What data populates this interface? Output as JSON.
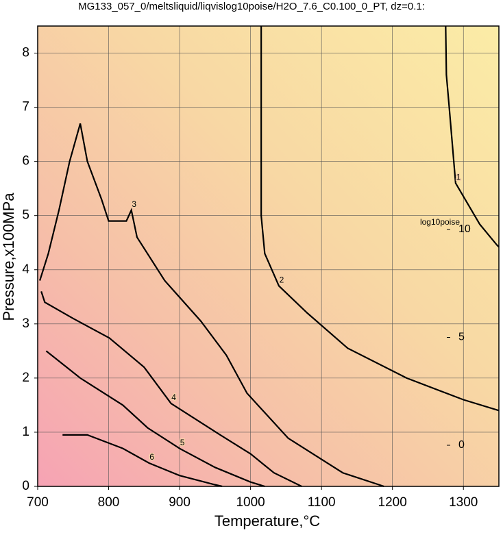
{
  "chart_data": {
    "type": "contour",
    "title": "MG133_057_0/meltsliquid/liqvislog10poise/H2O_7.6_C0.100_0_PT, dz=0.1:",
    "xlabel": "Temperature,°C",
    "ylabel": "Pressure,x100MPa",
    "xlim": [
      700,
      1350
    ],
    "ylim": [
      0,
      8.5
    ],
    "xticks": [
      700,
      800,
      900,
      1000,
      1100,
      1200,
      1300
    ],
    "yticks": [
      0,
      1,
      2,
      3,
      4,
      5,
      6,
      7,
      8
    ],
    "grid": true,
    "color": "#000000",
    "colorbar": {
      "label": "log10poise",
      "lim": [
        0,
        10
      ],
      "ticks": [
        0,
        5,
        10
      ]
    },
    "contours": [
      {
        "level": 1,
        "x": [
          1275,
          1276,
          1280,
          1289,
          1323,
          1347,
          1350
        ],
        "y": [
          8.5,
          7.6,
          7.0,
          5.6,
          4.84,
          4.46,
          4.42
        ]
      },
      {
        "level": 2,
        "x": [
          1015,
          1015,
          1015,
          1015,
          1020,
          1040,
          1080,
          1137,
          1220,
          1300,
          1350
        ],
        "y": [
          8.5,
          7.0,
          6.0,
          5.0,
          4.3,
          3.7,
          3.2,
          2.55,
          2.0,
          1.6,
          1.4
        ]
      },
      {
        "level": 3,
        "x": [
          703,
          715,
          730,
          745,
          760,
          770,
          790,
          800,
          825,
          832,
          840,
          879,
          930,
          966,
          995,
          1053,
          1130,
          1188
        ],
        "y": [
          3.8,
          4.3,
          5.1,
          6.0,
          6.7,
          6.0,
          5.3,
          4.9,
          4.9,
          5.1,
          4.6,
          3.8,
          3.05,
          2.42,
          1.72,
          0.89,
          0.25,
          0
        ]
      },
      {
        "level": 4,
        "x": [
          705,
          710,
          750,
          801,
          850,
          888,
          956,
          1000,
          1033,
          1072
        ],
        "y": [
          3.6,
          3.4,
          3.1,
          2.74,
          2.2,
          1.53,
          0.96,
          0.6,
          0.25,
          0
        ]
      },
      {
        "level": 5,
        "x": [
          712,
          760,
          820,
          855,
          900,
          950,
          1000,
          1020
        ],
        "y": [
          2.5,
          2.0,
          1.5,
          1.08,
          0.7,
          0.35,
          0.08,
          0
        ]
      },
      {
        "level": 6,
        "x": [
          735,
          770,
          820,
          857,
          900,
          950,
          960
        ],
        "y": [
          0.95,
          0.95,
          0.7,
          0.43,
          0.2,
          0.03,
          0
        ]
      }
    ]
  }
}
